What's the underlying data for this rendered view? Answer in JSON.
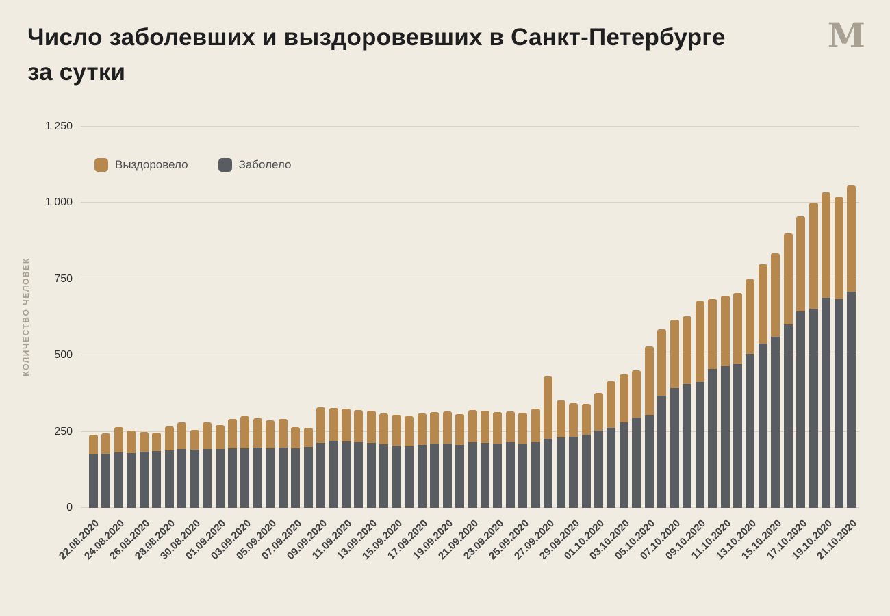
{
  "header": {
    "title": "Число заболевших и выздоровевших в Санкт-Петербурге\nза сутки",
    "logo_letter": "M"
  },
  "chart_data": {
    "type": "bar",
    "stacked": true,
    "title": "Число заболевших и выздоровевших в Санкт-Петербурге за сутки",
    "xlabel": "",
    "ylabel": "КОЛИЧЕСТВО ЧЕЛОВЕК",
    "ylim": [
      0,
      1250
    ],
    "yticks": [
      0,
      250,
      500,
      750,
      1000,
      1250
    ],
    "ytick_labels": [
      "0",
      "250",
      "500",
      "750",
      "1 000",
      "1 250"
    ],
    "grid": true,
    "background": "#f0ece2",
    "legend_position": "top-left-inside",
    "legend_order": [
      "Выздоровело",
      "Заболело"
    ],
    "x_tick_every": 2,
    "categories": [
      "22.08.2020",
      "23.08.2020",
      "24.08.2020",
      "25.08.2020",
      "26.08.2020",
      "27.08.2020",
      "28.08.2020",
      "29.08.2020",
      "30.08.2020",
      "31.08.2020",
      "01.09.2020",
      "02.09.2020",
      "03.09.2020",
      "04.09.2020",
      "05.09.2020",
      "06.09.2020",
      "07.09.2020",
      "08.09.2020",
      "09.09.2020",
      "10.09.2020",
      "11.09.2020",
      "12.09.2020",
      "13.09.2020",
      "14.09.2020",
      "15.09.2020",
      "16.09.2020",
      "17.09.2020",
      "18.09.2020",
      "19.09.2020",
      "20.09.2020",
      "21.09.2020",
      "22.09.2020",
      "23.09.2020",
      "24.09.2020",
      "25.09.2020",
      "26.09.2020",
      "27.09.2020",
      "28.09.2020",
      "29.09.2020",
      "30.09.2020",
      "01.10.2020",
      "02.10.2020",
      "03.10.2020",
      "04.10.2020",
      "05.10.2020",
      "06.10.2020",
      "07.10.2020",
      "08.10.2020",
      "09.10.2020",
      "10.10.2020",
      "11.10.2020",
      "12.10.2020",
      "13.10.2020",
      "14.10.2020",
      "15.10.2020",
      "16.10.2020",
      "17.10.2020",
      "18.10.2020",
      "19.10.2020",
      "20.10.2020",
      "21.10.2020"
    ],
    "series": [
      {
        "name": "Заболело",
        "color": "#595d61",
        "values": [
          175,
          178,
          182,
          180,
          184,
          186,
          189,
          193,
          190,
          192,
          194,
          196,
          195,
          197,
          196,
          197,
          195,
          199,
          214,
          219,
          218,
          216,
          214,
          208,
          205,
          203,
          207,
          210,
          212,
          207,
          215,
          214,
          212,
          215,
          211,
          216,
          226,
          232,
          234,
          241,
          253,
          263,
          281,
          296,
          304,
          369,
          392,
          407,
          413,
          455,
          465,
          471,
          505,
          538,
          561,
          602,
          645,
          652,
          688,
          685,
          710
        ]
      },
      {
        "name": "Выздоровело",
        "color": "#b6884d",
        "values": [
          65,
          67,
          83,
          73,
          66,
          61,
          79,
          87,
          65,
          88,
          78,
          96,
          105,
          96,
          92,
          95,
          70,
          63,
          116,
          108,
          108,
          106,
          104,
          102,
          101,
          97,
          102,
          104,
          104,
          100,
          105,
          105,
          102,
          101,
          100,
          110,
          204,
          120,
          110,
          100,
          123,
          153,
          156,
          156,
          226,
          216,
          225,
          222,
          265,
          229,
          230,
          234,
          245,
          262,
          274,
          298,
          310,
          348,
          347,
          335,
          348
        ]
      }
    ]
  }
}
